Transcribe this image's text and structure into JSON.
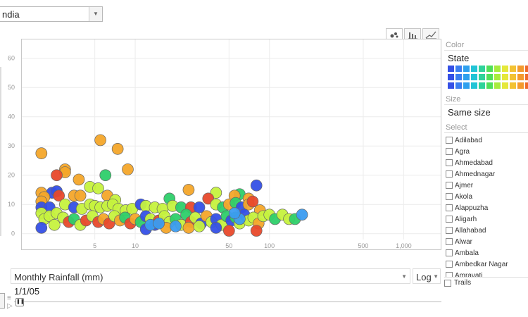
{
  "region_select": {
    "value": "ndia",
    "arrow_icon": "chevron-down-icon"
  },
  "chart_type_tabs": [
    {
      "name": "bubble-chart-icon",
      "active": true
    },
    {
      "name": "bar-chart-icon",
      "active": false
    },
    {
      "name": "line-chart-icon",
      "active": false
    }
  ],
  "chart_data": {
    "type": "scatter",
    "x_scale": "log",
    "xlim": [
      1.5,
      1800
    ],
    "ylim": [
      -2,
      65
    ],
    "x_ticks": [
      5,
      10,
      50,
      100,
      500,
      1000
    ],
    "x_tick_labels": [
      "5",
      "10",
      "50",
      "100",
      "500",
      "1,000"
    ],
    "y_ticks": [
      0,
      10,
      20,
      30,
      40,
      50,
      60
    ],
    "y_tick_labels": [
      "0",
      "10",
      "20",
      "30",
      "40",
      "50",
      "60"
    ],
    "grid": true,
    "points": [
      {
        "x": 2,
        "y": 27.5,
        "c": "#f4a62a"
      },
      {
        "x": 5.5,
        "y": 32,
        "c": "#f4a62a"
      },
      {
        "x": 7.4,
        "y": 29,
        "c": "#f4a62a"
      },
      {
        "x": 8.8,
        "y": 22,
        "c": "#f4a62a"
      },
      {
        "x": 3.0,
        "y": 22,
        "c": "#f4a62a"
      },
      {
        "x": 3.0,
        "y": 21,
        "c": "#f4a62a"
      },
      {
        "x": 6.0,
        "y": 20,
        "c": "#2ecf6a"
      },
      {
        "x": 2.6,
        "y": 20,
        "c": "#e8492b"
      },
      {
        "x": 3.8,
        "y": 18.5,
        "c": "#f4a62a"
      },
      {
        "x": 4.6,
        "y": 16,
        "c": "#c6f23e"
      },
      {
        "x": 5.3,
        "y": 15.5,
        "c": "#c6f23e"
      },
      {
        "x": 80,
        "y": 16.5,
        "c": "#3550e6"
      },
      {
        "x": 2.0,
        "y": 14,
        "c": "#f4a62a"
      },
      {
        "x": 2.4,
        "y": 14,
        "c": "#3550e6"
      },
      {
        "x": 2.6,
        "y": 14.5,
        "c": "#3550e6"
      },
      {
        "x": 2.7,
        "y": 13,
        "c": "#e8492b"
      },
      {
        "x": 3.5,
        "y": 13,
        "c": "#f4a62a"
      },
      {
        "x": 3.9,
        "y": 13,
        "c": "#f4a62a"
      },
      {
        "x": 6.2,
        "y": 13,
        "c": "#f4a62a"
      },
      {
        "x": 7.1,
        "y": 11.5,
        "c": "#c6f23e"
      },
      {
        "x": 2.1,
        "y": 12.5,
        "c": "#f4a62a"
      },
      {
        "x": 25,
        "y": 15,
        "c": "#f4a62a"
      },
      {
        "x": 40,
        "y": 14,
        "c": "#c6f23e"
      },
      {
        "x": 60,
        "y": 13.5,
        "c": "#2ecf6a"
      },
      {
        "x": 55,
        "y": 13,
        "c": "#f4a62a"
      },
      {
        "x": 70,
        "y": 12,
        "c": "#f4a62a"
      },
      {
        "x": 18,
        "y": 12,
        "c": "#2ecf6a"
      },
      {
        "x": 2.0,
        "y": 11,
        "c": "#f4a62a"
      },
      {
        "x": 2.0,
        "y": 9,
        "c": "#3550e6"
      },
      {
        "x": 2.3,
        "y": 9,
        "c": "#3550e6"
      },
      {
        "x": 3.0,
        "y": 10,
        "c": "#c6f23e"
      },
      {
        "x": 3.5,
        "y": 9,
        "c": "#3550e6"
      },
      {
        "x": 4.0,
        "y": 8.5,
        "c": "#c6f23e"
      },
      {
        "x": 4.6,
        "y": 10,
        "c": "#c6f23e"
      },
      {
        "x": 5.0,
        "y": 9.5,
        "c": "#c6f23e"
      },
      {
        "x": 5.5,
        "y": 9,
        "c": "#c6f23e"
      },
      {
        "x": 6.2,
        "y": 9.5,
        "c": "#c6f23e"
      },
      {
        "x": 6.8,
        "y": 10,
        "c": "#c6f23e"
      },
      {
        "x": 7.5,
        "y": 8.5,
        "c": "#c6f23e"
      },
      {
        "x": 8.5,
        "y": 8,
        "c": "#c6f23e"
      },
      {
        "x": 9.5,
        "y": 8.5,
        "c": "#c6f23e"
      },
      {
        "x": 11,
        "y": 10,
        "c": "#3550e6"
      },
      {
        "x": 12,
        "y": 9.5,
        "c": "#c6f23e"
      },
      {
        "x": 14,
        "y": 9,
        "c": "#c6f23e"
      },
      {
        "x": 16,
        "y": 8.5,
        "c": "#c6f23e"
      },
      {
        "x": 19,
        "y": 9.5,
        "c": "#c6f23e"
      },
      {
        "x": 22,
        "y": 9,
        "c": "#2ecf6a"
      },
      {
        "x": 26,
        "y": 9,
        "c": "#e8492b"
      },
      {
        "x": 30,
        "y": 9,
        "c": "#3550e6"
      },
      {
        "x": 35,
        "y": 12,
        "c": "#e8492b"
      },
      {
        "x": 40,
        "y": 10,
        "c": "#c6f23e"
      },
      {
        "x": 45,
        "y": 9,
        "c": "#2ecf6a"
      },
      {
        "x": 50,
        "y": 10,
        "c": "#f4a62a"
      },
      {
        "x": 56,
        "y": 10.5,
        "c": "#2ecf6a"
      },
      {
        "x": 62,
        "y": 9,
        "c": "#3550e6"
      },
      {
        "x": 70,
        "y": 10,
        "c": "#f4a62a"
      },
      {
        "x": 75,
        "y": 11,
        "c": "#e8492b"
      },
      {
        "x": 85,
        "y": 8,
        "c": "#f4a62a"
      },
      {
        "x": 2.0,
        "y": 7,
        "c": "#c6f23e"
      },
      {
        "x": 2.1,
        "y": 5,
        "c": "#c6f23e"
      },
      {
        "x": 2.3,
        "y": 6,
        "c": "#c6f23e"
      },
      {
        "x": 2.6,
        "y": 7,
        "c": "#c6f23e"
      },
      {
        "x": 2.9,
        "y": 5.5,
        "c": "#c6f23e"
      },
      {
        "x": 3.2,
        "y": 4,
        "c": "#e8492b"
      },
      {
        "x": 3.5,
        "y": 5,
        "c": "#2ecf6a"
      },
      {
        "x": 3.9,
        "y": 3,
        "c": "#c6f23e"
      },
      {
        "x": 4.3,
        "y": 4.5,
        "c": "#e8492b"
      },
      {
        "x": 4.8,
        "y": 6,
        "c": "#c6f23e"
      },
      {
        "x": 5.3,
        "y": 4,
        "c": "#e8492b"
      },
      {
        "x": 5.8,
        "y": 5,
        "c": "#f4a62a"
      },
      {
        "x": 6.4,
        "y": 3.5,
        "c": "#e8492b"
      },
      {
        "x": 7.0,
        "y": 6,
        "c": "#c6f23e"
      },
      {
        "x": 7.7,
        "y": 4.5,
        "c": "#f4a62a"
      },
      {
        "x": 8.4,
        "y": 5.5,
        "c": "#2ecf6a"
      },
      {
        "x": 9.2,
        "y": 3.5,
        "c": "#e8492b"
      },
      {
        "x": 10,
        "y": 5,
        "c": "#f4a62a"
      },
      {
        "x": 11,
        "y": 4,
        "c": "#2ecf6a"
      },
      {
        "x": 12,
        "y": 6,
        "c": "#3550e6"
      },
      {
        "x": 13,
        "y": 5,
        "c": "#c6f23e"
      },
      {
        "x": 14,
        "y": 3,
        "c": "#3550e6"
      },
      {
        "x": 15,
        "y": 4.5,
        "c": "#e8492b"
      },
      {
        "x": 16.5,
        "y": 6,
        "c": "#c6f23e"
      },
      {
        "x": 18,
        "y": 4,
        "c": "#c6f23e"
      },
      {
        "x": 20,
        "y": 5,
        "c": "#2ecf6a"
      },
      {
        "x": 22,
        "y": 3,
        "c": "#c6f23e"
      },
      {
        "x": 24,
        "y": 6.5,
        "c": "#2ecf6a"
      },
      {
        "x": 26,
        "y": 4,
        "c": "#e8492b"
      },
      {
        "x": 28,
        "y": 5.5,
        "c": "#c6f23e"
      },
      {
        "x": 31,
        "y": 3.5,
        "c": "#3550e6"
      },
      {
        "x": 34,
        "y": 6,
        "c": "#f4a62a"
      },
      {
        "x": 37,
        "y": 4,
        "c": "#c6f23e"
      },
      {
        "x": 40,
        "y": 5,
        "c": "#3550e6"
      },
      {
        "x": 44,
        "y": 3,
        "c": "#c6f23e"
      },
      {
        "x": 48,
        "y": 6,
        "c": "#2ecf6a"
      },
      {
        "x": 52,
        "y": 4.5,
        "c": "#3550e6"
      },
      {
        "x": 56,
        "y": 5.5,
        "c": "#2ecf6a"
      },
      {
        "x": 60,
        "y": 3.5,
        "c": "#c6f23e"
      },
      {
        "x": 65,
        "y": 6.5,
        "c": "#3550e6"
      },
      {
        "x": 70,
        "y": 4.5,
        "c": "#c6f23e"
      },
      {
        "x": 76,
        "y": 5.5,
        "c": "#c6f23e"
      },
      {
        "x": 83,
        "y": 3.5,
        "c": "#f4a62a"
      },
      {
        "x": 90,
        "y": 6,
        "c": "#c6f23e"
      },
      {
        "x": 100,
        "y": 6.5,
        "c": "#c6f23e"
      },
      {
        "x": 110,
        "y": 5,
        "c": "#2ecf6a"
      },
      {
        "x": 125,
        "y": 6.5,
        "c": "#c6f23e"
      },
      {
        "x": 140,
        "y": 5,
        "c": "#c6f23e"
      },
      {
        "x": 155,
        "y": 5,
        "c": "#2ecf6a"
      },
      {
        "x": 175,
        "y": 6.5,
        "c": "#3b9cf0"
      },
      {
        "x": 2.0,
        "y": 2,
        "c": "#3550e6"
      },
      {
        "x": 2.5,
        "y": 3,
        "c": "#c6f23e"
      },
      {
        "x": 12,
        "y": 1.5,
        "c": "#3550e6"
      },
      {
        "x": 17,
        "y": 2,
        "c": "#f4a62a"
      },
      {
        "x": 25,
        "y": 2,
        "c": "#f4a62a"
      },
      {
        "x": 30,
        "y": 2.5,
        "c": "#c6f23e"
      },
      {
        "x": 40,
        "y": 2,
        "c": "#3550e6"
      },
      {
        "x": 50,
        "y": 1,
        "c": "#e8492b"
      },
      {
        "x": 80,
        "y": 1,
        "c": "#e8492b"
      },
      {
        "x": 13,
        "y": 3,
        "c": "#3b9cf0"
      },
      {
        "x": 15,
        "y": 3.5,
        "c": "#3b9cf0"
      },
      {
        "x": 20,
        "y": 2.5,
        "c": "#3b9cf0"
      },
      {
        "x": 60,
        "y": 5,
        "c": "#3b9cf0"
      },
      {
        "x": 55,
        "y": 7,
        "c": "#3b9cf0"
      }
    ]
  },
  "color": {
    "label": "Color",
    "value": "State",
    "swatch_rows": [
      [
        "#3550e6",
        "#3b7ef0",
        "#2fa0ee",
        "#22c4d6",
        "#2ed39a",
        "#4fdf5a",
        "#a7ec3d",
        "#e5e83a",
        "#f3c233",
        "#f39a2e",
        "#ef6a2a",
        "#e8432b"
      ],
      [
        "#3550e6",
        "#3b7ef0",
        "#2fa0ee",
        "#22c4d6",
        "#2ed39a",
        "#4fdf5a",
        "#a7ec3d",
        "#e5e83a",
        "#f3c233",
        "#f39a2e",
        "#ef6a2a",
        "#e8432b"
      ],
      [
        "#3550e6",
        "#3b7ef0",
        "#2fa0ee",
        "#22c4d6",
        "#2ed39a",
        "#4fdf5a",
        "#a7ec3d",
        "#e5e83a",
        "#f3c233",
        "#f39a2e",
        "#ef6a2a",
        "#e8432b"
      ]
    ]
  },
  "size": {
    "label": "Size",
    "value": "Same size"
  },
  "select": {
    "label": "Select",
    "items": [
      "Adilabad",
      "Agra",
      "Ahmedabad",
      "Ahmednagar",
      "Ajmer",
      "Akola",
      "Alappuzha",
      "Aligarh",
      "Allahabad",
      "Alwar",
      "Ambala",
      "Ambedkar Nagar",
      "Amravati"
    ]
  },
  "trails": {
    "label": "Trails"
  },
  "x_metric": {
    "value": "Monthly Rainfall (mm)",
    "arrow_icon": "chevron-down-icon"
  },
  "scale": {
    "value": "Log",
    "arrow_icon": "chevron-down-icon"
  },
  "date": "1/1/05",
  "timeline": {
    "progress": 0.0
  }
}
